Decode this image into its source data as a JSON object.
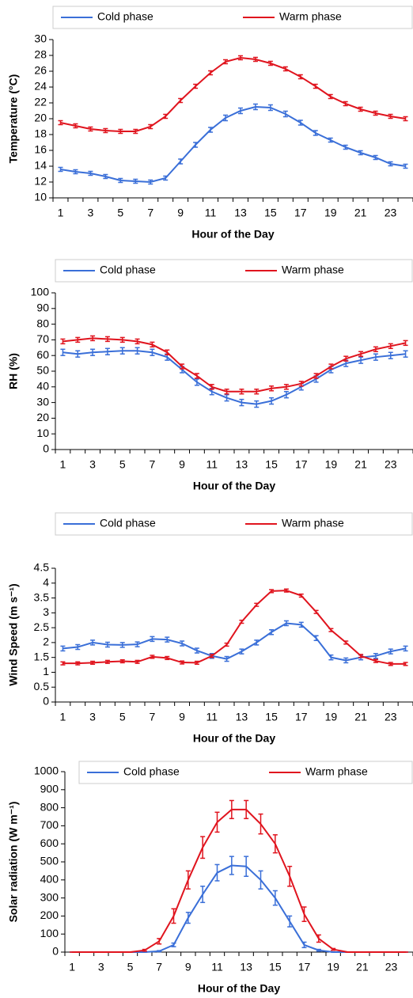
{
  "chart_data": [
    {
      "type": "line",
      "y_label": "Temperature (°C)",
      "x_label": "Hour of the Day",
      "legend": "top",
      "categories": [
        1,
        null,
        3,
        null,
        5,
        null,
        7,
        null,
        9,
        null,
        11,
        null,
        13,
        null,
        15,
        null,
        17,
        null,
        19,
        null,
        21,
        null,
        23,
        null
      ],
      "ylim": [
        10,
        30
      ],
      "yticks": [
        10,
        12,
        14,
        16,
        18,
        20,
        22,
        24,
        26,
        28,
        30
      ],
      "series": [
        {
          "name": "Cold phase",
          "color": "#3a6fd8",
          "values": [
            13.6,
            13.3,
            13.1,
            12.7,
            12.2,
            12.1,
            12.0,
            12.5,
            14.6,
            16.7,
            18.6,
            20.1,
            21.0,
            21.5,
            21.4,
            20.6,
            19.5,
            18.2,
            17.3,
            16.4,
            15.7,
            15.1,
            14.3,
            14.0
          ],
          "errors": [
            0.25,
            0.25,
            0.25,
            0.25,
            0.25,
            0.25,
            0.25,
            0.25,
            0.3,
            0.3,
            0.3,
            0.35,
            0.35,
            0.35,
            0.35,
            0.35,
            0.3,
            0.3,
            0.25,
            0.25,
            0.25,
            0.25,
            0.25,
            0.25
          ]
        },
        {
          "name": "Warm phase",
          "color": "#e0141e",
          "values": [
            19.5,
            19.1,
            18.7,
            18.5,
            18.4,
            18.4,
            19.0,
            20.3,
            22.3,
            24.1,
            25.8,
            27.2,
            27.7,
            27.5,
            27.0,
            26.3,
            25.3,
            24.1,
            22.8,
            21.9,
            21.2,
            20.7,
            20.3,
            20.0
          ],
          "errors": [
            0.25,
            0.25,
            0.25,
            0.25,
            0.25,
            0.25,
            0.25,
            0.25,
            0.25,
            0.25,
            0.25,
            0.25,
            0.25,
            0.25,
            0.25,
            0.25,
            0.25,
            0.25,
            0.25,
            0.25,
            0.25,
            0.25,
            0.25,
            0.25
          ]
        }
      ]
    },
    {
      "type": "line",
      "y_label": "RH (%)",
      "x_label": "Hour of the Day",
      "legend": "top",
      "categories": [
        1,
        null,
        3,
        null,
        5,
        null,
        7,
        null,
        9,
        null,
        11,
        null,
        13,
        null,
        15,
        null,
        17,
        null,
        19,
        null,
        21,
        null,
        23,
        null
      ],
      "ylim": [
        0,
        100
      ],
      "yticks": [
        0,
        10,
        20,
        30,
        40,
        50,
        60,
        70,
        80,
        90,
        100
      ],
      "series": [
        {
          "name": "Cold phase",
          "color": "#3a6fd8",
          "values": [
            62,
            61,
            62,
            62.5,
            63,
            63,
            62,
            59,
            51,
            43,
            37,
            33,
            30,
            29,
            31,
            35,
            40,
            45,
            51,
            55,
            57,
            59,
            60,
            61
          ],
          "errors": [
            2,
            2,
            2,
            2,
            2,
            2,
            2,
            2,
            2,
            2,
            2,
            2,
            2,
            2,
            2,
            2,
            2,
            2,
            2,
            2,
            2,
            2,
            2,
            2
          ]
        },
        {
          "name": "Warm phase",
          "color": "#e0141e",
          "values": [
            69,
            70,
            71,
            70.5,
            70,
            69,
            67,
            62,
            53,
            47,
            40,
            37,
            37,
            37,
            39,
            40,
            42,
            47,
            53,
            58,
            61,
            64,
            66,
            68
          ],
          "errors": [
            1.5,
            1.5,
            1.5,
            1.5,
            1.5,
            1.5,
            1.5,
            1.5,
            1.5,
            1.5,
            1.5,
            1.5,
            1.5,
            1.5,
            1.5,
            1.5,
            1.5,
            1.5,
            1.5,
            1.5,
            1.5,
            1.5,
            1.5,
            1.5
          ]
        }
      ]
    },
    {
      "type": "line",
      "y_label": "Wind Speed (m s⁻¹)",
      "x_label": "Hour of the Day",
      "legend": "top",
      "categories": [
        1,
        null,
        3,
        null,
        5,
        null,
        7,
        null,
        9,
        null,
        11,
        null,
        13,
        null,
        15,
        null,
        17,
        null,
        19,
        null,
        21,
        null,
        23,
        null
      ],
      "ylim": [
        0,
        4.5
      ],
      "yticks": [
        0,
        0.5,
        1,
        1.5,
        2,
        2.5,
        3,
        3.5,
        4,
        4.5
      ],
      "series": [
        {
          "name": "Cold phase",
          "color": "#3a6fd8",
          "values": [
            1.8,
            1.85,
            2.0,
            1.93,
            1.92,
            1.94,
            2.12,
            2.1,
            1.97,
            1.73,
            1.55,
            1.45,
            1.7,
            2.0,
            2.35,
            2.65,
            2.6,
            2.15,
            1.5,
            1.4,
            1.5,
            1.55,
            1.7,
            1.8
          ],
          "errors": [
            0.08,
            0.08,
            0.08,
            0.08,
            0.08,
            0.08,
            0.08,
            0.08,
            0.08,
            0.08,
            0.08,
            0.08,
            0.08,
            0.08,
            0.08,
            0.08,
            0.08,
            0.08,
            0.08,
            0.08,
            0.08,
            0.08,
            0.08,
            0.08
          ]
        },
        {
          "name": "Warm phase",
          "color": "#e0141e",
          "values": [
            1.3,
            1.3,
            1.32,
            1.35,
            1.37,
            1.35,
            1.52,
            1.48,
            1.33,
            1.32,
            1.55,
            1.93,
            2.7,
            3.27,
            3.73,
            3.75,
            3.58,
            3.03,
            2.42,
            2.0,
            1.55,
            1.38,
            1.28,
            1.28
          ],
          "errors": [
            0.05,
            0.05,
            0.05,
            0.05,
            0.05,
            0.05,
            0.05,
            0.05,
            0.05,
            0.05,
            0.05,
            0.05,
            0.05,
            0.05,
            0.05,
            0.05,
            0.05,
            0.05,
            0.05,
            0.05,
            0.05,
            0.05,
            0.05,
            0.05
          ]
        }
      ]
    },
    {
      "type": "line",
      "y_label": "Solar radiation (W m⁻¹)",
      "x_label": "Hour of the Day",
      "legend": "top",
      "categories": [
        1,
        null,
        3,
        null,
        5,
        null,
        7,
        null,
        9,
        null,
        11,
        null,
        13,
        null,
        15,
        null,
        17,
        null,
        19,
        null,
        21,
        null,
        23,
        null
      ],
      "ylim": [
        0,
        1000
      ],
      "yticks": [
        0,
        100,
        200,
        300,
        400,
        500,
        600,
        700,
        800,
        900,
        1000
      ],
      "series": [
        {
          "name": "Cold phase",
          "color": "#3a6fd8",
          "values": [
            0,
            0,
            0,
            0,
            0,
            0,
            5,
            40,
            190,
            320,
            440,
            480,
            475,
            400,
            300,
            170,
            40,
            10,
            0,
            0,
            0,
            0,
            0,
            0
          ],
          "errors": [
            0,
            0,
            0,
            0,
            0,
            0,
            3,
            10,
            30,
            45,
            45,
            50,
            55,
            50,
            40,
            30,
            15,
            5,
            0,
            0,
            0,
            0,
            0,
            0
          ]
        },
        {
          "name": "Warm phase",
          "color": "#e0141e",
          "values": [
            0,
            0,
            0,
            0,
            0,
            10,
            60,
            200,
            400,
            580,
            720,
            790,
            790,
            710,
            600,
            420,
            210,
            75,
            15,
            0,
            0,
            0,
            0,
            0
          ],
          "errors": [
            0,
            0,
            0,
            0,
            0,
            5,
            15,
            40,
            50,
            60,
            55,
            50,
            50,
            55,
            50,
            55,
            40,
            20,
            5,
            0,
            0,
            0,
            0,
            0
          ]
        }
      ]
    }
  ]
}
